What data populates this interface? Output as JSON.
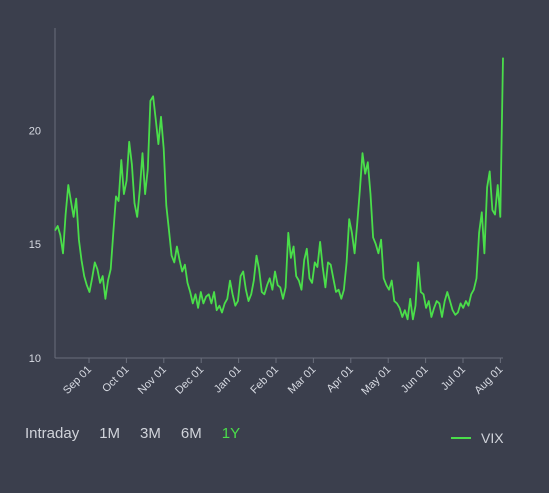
{
  "range_selector": {
    "options": [
      "Intraday",
      "1M",
      "3M",
      "6M",
      "1Y"
    ],
    "active": "1Y"
  },
  "chart_data": {
    "type": "line",
    "title": "",
    "xlabel": "",
    "ylabel": "",
    "x_tick_labels": [
      "Sep 01",
      "Oct 01",
      "Nov 01",
      "Dec 01",
      "Jan 01",
      "Feb 01",
      "Mar 01",
      "Apr 01",
      "May 01",
      "Jun 01",
      "Jul 01",
      "Aug 01"
    ],
    "y_ticks": [
      10,
      15,
      20
    ],
    "ylim": [
      10,
      24.5
    ],
    "grid": false,
    "legend_position": "bottom-right",
    "series": [
      {
        "name": "VIX",
        "color": "#4ade4a",
        "values": [
          15.6,
          15.8,
          15.4,
          14.6,
          16.3,
          17.6,
          16.9,
          16.2,
          17.0,
          15.2,
          14.3,
          13.6,
          13.2,
          12.9,
          13.5,
          14.2,
          13.9,
          13.3,
          13.6,
          12.6,
          13.4,
          13.9,
          15.5,
          17.1,
          16.9,
          18.7,
          17.2,
          17.8,
          19.5,
          18.5,
          16.8,
          16.2,
          17.4,
          19.0,
          17.2,
          18.3,
          21.3,
          21.5,
          20.5,
          19.4,
          20.6,
          19.2,
          16.7,
          15.6,
          14.5,
          14.2,
          14.9,
          14.3,
          13.8,
          14.1,
          13.3,
          12.9,
          12.4,
          12.8,
          12.2,
          12.9,
          12.4,
          12.7,
          12.8,
          12.4,
          12.9,
          12.1,
          12.3,
          12.0,
          12.4,
          12.6,
          13.4,
          12.8,
          12.3,
          12.5,
          13.6,
          13.8,
          13.0,
          12.5,
          12.8,
          13.4,
          14.5,
          13.9,
          12.9,
          12.8,
          13.2,
          13.5,
          13.0,
          13.8,
          13.2,
          13.1,
          12.6,
          13.1,
          15.5,
          14.4,
          14.9,
          13.6,
          13.4,
          13.0,
          14.3,
          14.8,
          13.5,
          13.3,
          14.2,
          14.0,
          15.1,
          14.0,
          13.1,
          14.2,
          14.1,
          13.5,
          12.9,
          13.0,
          12.6,
          13.0,
          14.2,
          16.1,
          15.5,
          14.6,
          15.9,
          17.4,
          19.0,
          18.1,
          18.6,
          17.2,
          15.3,
          15.0,
          14.6,
          15.2,
          13.5,
          13.2,
          13.0,
          13.4,
          12.5,
          12.4,
          12.2,
          11.8,
          12.1,
          11.7,
          12.6,
          11.7,
          12.3,
          14.2,
          12.9,
          12.8,
          12.2,
          12.5,
          11.8,
          12.2,
          12.5,
          12.4,
          11.8,
          12.5,
          12.9,
          12.5,
          12.1,
          11.9,
          12.0,
          12.4,
          12.2,
          12.5,
          12.3,
          12.8,
          13.0,
          13.5,
          15.5,
          16.4,
          14.6,
          17.5,
          18.2,
          16.5,
          16.3,
          17.6,
          16.2,
          23.2
        ]
      }
    ]
  }
}
